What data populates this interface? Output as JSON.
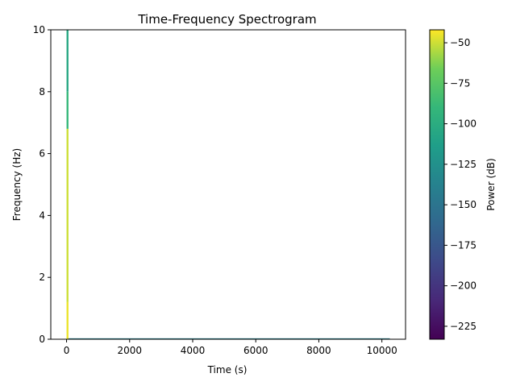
{
  "chart_data": {
    "type": "heatmap",
    "title": "Time-Frequency Spectrogram",
    "xlabel": "Time (s)",
    "ylabel": "Frequency (Hz)",
    "xlim": [
      -500,
      10750
    ],
    "ylim": [
      0,
      10
    ],
    "x_ticks": [
      0,
      2000,
      4000,
      6000,
      8000,
      10000
    ],
    "y_ticks": [
      0,
      2,
      4,
      6,
      8,
      10
    ],
    "colorbar": {
      "label": "Power (dB)",
      "range": [
        -233,
        -42
      ],
      "ticks": [
        -50,
        -75,
        -100,
        -125,
        -150,
        -175,
        -200,
        -225
      ],
      "colormap": "viridis"
    },
    "bands": [
      {
        "t_start": 0,
        "t_end": 60,
        "f_start": 0,
        "f_end": 1.2,
        "power_db": -45
      },
      {
        "t_start": 0,
        "t_end": 60,
        "f_start": 1.2,
        "f_end": 6.8,
        "power_db": -50
      },
      {
        "t_start": 0,
        "t_end": 60,
        "f_start": 6.8,
        "f_end": 8.0,
        "power_db": -90
      },
      {
        "t_start": 0,
        "t_end": 60,
        "f_start": 8.0,
        "f_end": 10.0,
        "power_db": -105
      },
      {
        "t_start": 60,
        "t_end": 10250,
        "f_start": 0,
        "f_end": 0.03,
        "power_db": -140
      }
    ],
    "grid": false,
    "legend": "colorbar-right"
  }
}
